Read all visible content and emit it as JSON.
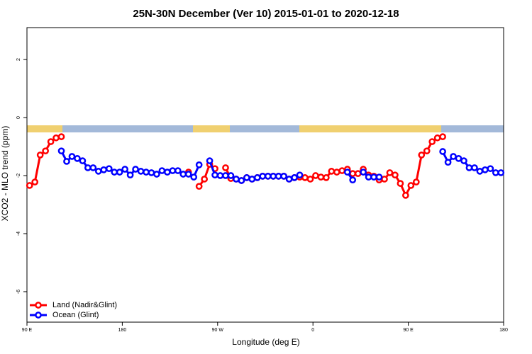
{
  "chart_data": {
    "type": "line",
    "title": "25N-30N December (Ver 10)   2015-01-01 to 2020-12-18",
    "xlabel": "Longitude (deg E)",
    "ylabel": "XCO2 - MLO trend (ppm)",
    "xlim": [
      90,
      540
    ],
    "ylim": [
      -7.05,
      3.1
    ],
    "xticks": [
      {
        "value": 90,
        "label": "90 E"
      },
      180,
      {
        "value": 270,
        "label": "90 W"
      },
      {
        "value": 360,
        "label": "0"
      },
      {
        "value": 450,
        "label": "90 E"
      },
      {
        "value": 540,
        "label": "180"
      }
    ],
    "yticks": [
      -6,
      -4,
      -2,
      0,
      2
    ],
    "legend": "bottom-left",
    "x": [
      92.5,
      97.5,
      102.5,
      107.5,
      112.5,
      117.5,
      122.5,
      127.5,
      132.5,
      137.5,
      142.5,
      147.5,
      152.5,
      157.5,
      162.5,
      167.5,
      172.5,
      177.5,
      182.5,
      187.5,
      192.5,
      197.5,
      202.5,
      207.5,
      212.5,
      217.5,
      222.5,
      227.5,
      232.5,
      237.5,
      242.5,
      247.5,
      252.5,
      257.5,
      262.5,
      267.5,
      272.5,
      277.5,
      282.5,
      287.5,
      292.5,
      297.5,
      302.5,
      307.5,
      312.5,
      317.5,
      322.5,
      327.5,
      332.5,
      337.5,
      342.5,
      347.5,
      352.5,
      357.5,
      362.5,
      367.5,
      372.5,
      377.5,
      382.5,
      387.5,
      392.5,
      397.5,
      402.5,
      407.5,
      412.5,
      417.5,
      422.5,
      427.5,
      432.5,
      437.5,
      442.5,
      447.5,
      452.5,
      457.5,
      462.5,
      467.5,
      472.5,
      477.5,
      482.5,
      487.5,
      492.5,
      497.5,
      502.5,
      507.5,
      512.5,
      517.5,
      522.5,
      527.5,
      532.5,
      537.5
    ],
    "series": [
      {
        "name": "Land (Nadir&Glint)",
        "color": "#ff0000",
        "values": [
          -2.34,
          -2.22,
          -1.29,
          -1.15,
          -0.83,
          -0.7,
          -0.66,
          null,
          null,
          null,
          null,
          null,
          null,
          null,
          null,
          null,
          null,
          null,
          null,
          null,
          null,
          null,
          null,
          null,
          null,
          null,
          null,
          null,
          null,
          null,
          -1.88,
          null,
          -2.37,
          -2.12,
          -1.61,
          -1.76,
          null,
          -1.73,
          -2.1,
          -2.12,
          -2.17,
          -2.07,
          -2.12,
          -2.07,
          -2.02,
          -2.02,
          -2.02,
          -2.02,
          -2.02,
          -2.12,
          -2.07,
          -2.05,
          -2.07,
          -2.12,
          -2.0,
          -2.05,
          -2.07,
          -1.85,
          -1.88,
          -1.83,
          -1.78,
          -1.93,
          -1.93,
          -1.78,
          -1.98,
          -2.02,
          -2.15,
          -2.12,
          -1.9,
          -1.98,
          -2.27,
          -2.68,
          -2.34,
          -2.22,
          -1.29,
          -1.15,
          -0.83,
          -0.7,
          -0.66,
          null,
          null,
          null,
          null,
          null,
          null,
          null,
          null,
          null,
          null,
          null
        ]
      },
      {
        "name": "Ocean (Glint)",
        "color": "#0000ff",
        "values": [
          null,
          null,
          null,
          null,
          null,
          null,
          -1.15,
          -1.51,
          -1.34,
          -1.41,
          -1.49,
          -1.73,
          -1.73,
          -1.85,
          -1.8,
          -1.76,
          -1.88,
          -1.88,
          -1.78,
          -1.98,
          -1.78,
          -1.85,
          -1.88,
          -1.9,
          -1.95,
          -1.83,
          -1.88,
          -1.83,
          -1.83,
          -1.95,
          -1.95,
          -2.05,
          -1.63,
          null,
          -1.49,
          -1.98,
          -2.0,
          -2.0,
          -2.0,
          -2.12,
          -2.17,
          -2.07,
          -2.12,
          -2.07,
          -2.02,
          -2.02,
          -2.02,
          -2.02,
          -2.02,
          -2.12,
          -2.07,
          -1.98,
          null,
          null,
          null,
          null,
          null,
          null,
          null,
          null,
          -1.88,
          -2.15,
          null,
          -1.88,
          -2.05,
          -2.05,
          -2.05,
          null,
          null,
          null,
          null,
          null,
          null,
          null,
          null,
          null,
          null,
          null,
          -1.17,
          -1.54,
          -1.34,
          -1.41,
          -1.49,
          -1.73,
          -1.73,
          -1.85,
          -1.8,
          -1.76,
          -1.9,
          -1.9
        ]
      }
    ]
  }
}
